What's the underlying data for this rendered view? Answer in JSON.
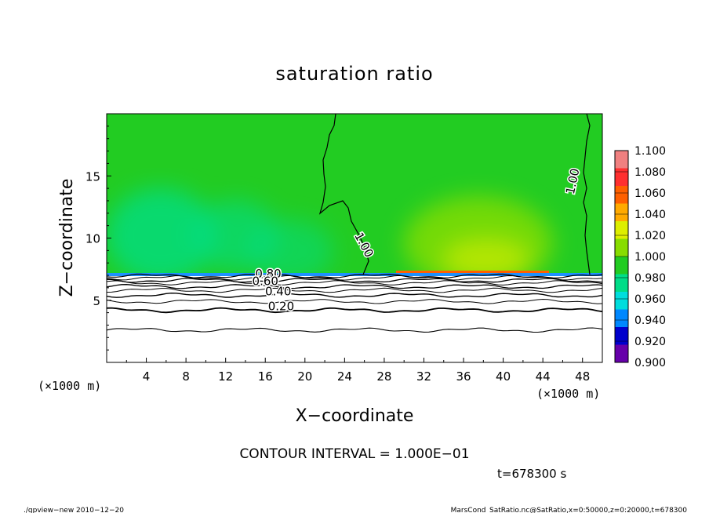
{
  "chart_data": {
    "type": "heatmap",
    "title": "saturation ratio",
    "xlabel": "X−coordinate",
    "ylabel": "Z−coordinate",
    "x_unit_left": "(×1000 m)",
    "x_unit_right": "(×1000 m)",
    "xlim": [
      0,
      50
    ],
    "ylim": [
      0,
      20
    ],
    "x_ticks": [
      4,
      8,
      12,
      16,
      20,
      24,
      28,
      32,
      36,
      40,
      44,
      48
    ],
    "y_ticks": [
      5,
      10,
      15
    ],
    "contour_interval_text": "CONTOUR INTERVAL = 1.000E−01",
    "time_text": "t=678300 s",
    "footer_left": "./gpview−new 2010−12−20",
    "footer_right": "MarsCond_SatRatio.nc@SatRatio,x=0:50000,z=0:20000,t=678300",
    "colorbar": {
      "levels": [
        "1.100",
        "1.080",
        "1.060",
        "1.040",
        "1.020",
        "1.000",
        "0.980",
        "0.960",
        "0.940",
        "0.920",
        "0.900"
      ],
      "colors": [
        "#f08080",
        "#ff3030",
        "#ff6000",
        "#ffaa00",
        "#ddee00",
        "#88dd00",
        "#22cc22",
        "#00dd88",
        "#00dddd",
        "#0088ff",
        "#0000cc",
        "#6600aa"
      ]
    },
    "contour_labels": [
      {
        "text": "1.00",
        "x": 25.6,
        "y": 9.3,
        "rotate": 62
      },
      {
        "text": "1.00",
        "x": 47.4,
        "y": 14.5,
        "rotate": -78
      },
      {
        "text": "0.80",
        "x": 16.3,
        "y": 6.8,
        "rotate": 0
      },
      {
        "text": "0.60",
        "x": 16.0,
        "y": 6.2,
        "rotate": 0
      },
      {
        "text": "0.40",
        "x": 17.3,
        "y": 5.4,
        "rotate": 0
      },
      {
        "text": "0.20",
        "x": 17.6,
        "y": 4.2,
        "rotate": 0
      }
    ],
    "inversion_height": 7.0
  }
}
